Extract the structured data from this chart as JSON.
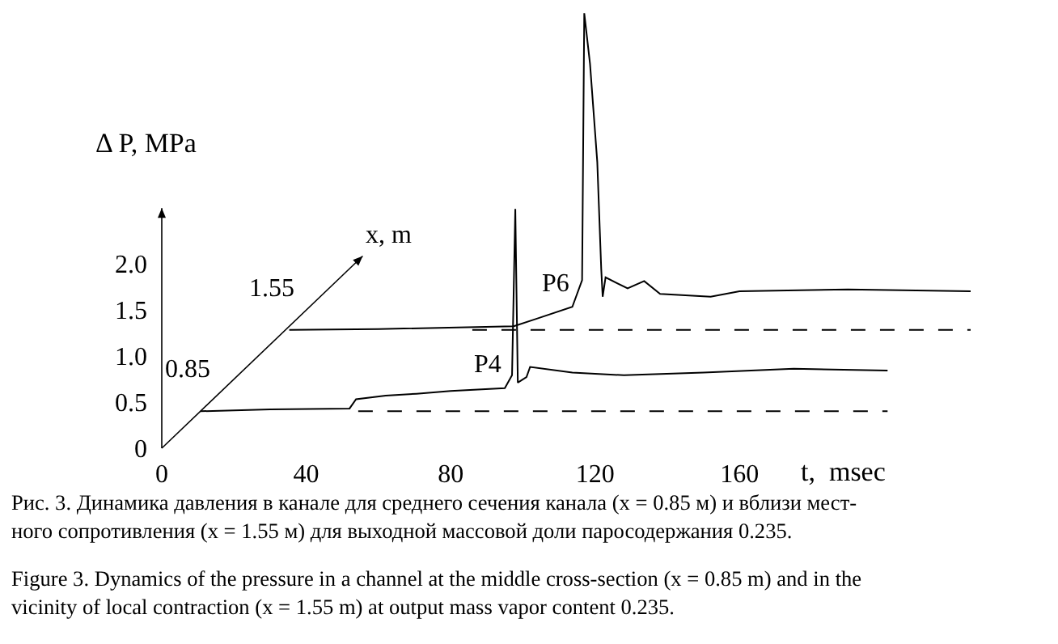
{
  "chart_data": {
    "type": "line",
    "xlabel": "t,  msec",
    "ylabel": "Δ P, MPa",
    "xlim": [
      0,
      224
    ],
    "ylim": [
      0,
      4.8
    ],
    "xticks": [
      0,
      40,
      80,
      120,
      160
    ],
    "yticks": [
      0,
      0.5,
      {
        "value": 1,
        "label": "1.0"
      },
      1.5,
      {
        "value": 2,
        "label": "2.0"
      }
    ],
    "series": [
      {
        "name": "P4",
        "color": "#000000",
        "line_style": "solid",
        "x": [
          10.7,
          30,
          52,
          53.8,
          62,
          70.5,
          80,
          95,
          97,
          97.9,
          98.6,
          101,
          102,
          113.7,
          128,
          150,
          175,
          201
        ],
        "values": [
          0.4,
          0.42,
          0.43,
          0.53,
          0.57,
          0.59,
          0.62,
          0.65,
          0.79,
          2.59,
          0.71,
          0.77,
          0.88,
          0.82,
          0.79,
          0.82,
          0.86,
          0.84
        ]
      },
      {
        "color": "#000000",
        "line_style": "dashed",
        "x": [
          54.4,
          201
        ],
        "values": [
          0.4,
          0.4
        ]
      },
      {
        "name": "P6",
        "color": "#000000",
        "line_style": "solid",
        "x": [
          35.3,
          60,
          97.5,
          103.7,
          113.7,
          116.4,
          117,
          118.6,
          120.6,
          121.7,
          122.1,
          122.9,
          129,
          133.6,
          138,
          152,
          160,
          190,
          224
        ],
        "values": [
          1.28,
          1.29,
          1.32,
          1.4,
          1.53,
          1.82,
          4.71,
          4.16,
          3.1,
          1.94,
          1.64,
          1.85,
          1.73,
          1.81,
          1.67,
          1.64,
          1.7,
          1.72,
          1.7
        ]
      },
      {
        "color": "#000000",
        "line_style": "dashed",
        "x": [
          86,
          224
        ],
        "values": [
          1.28,
          1.28
        ]
      }
    ],
    "annotations": [
      "x, m",
      "0.85",
      "1.55",
      "Рис. 3. Динамика давления в канале для среднего сечения канала (x = 0.85 м) и вблизи мест-\nного сопротивления (x = 1.55 м) для выходной массовой доли паросодержания 0.235.",
      "Figure 3. Dynamics of the pressure in a channel at the middle cross-section (x = 0.85 m) and in the\nvicinity of local contraction (x = 1.55 m) at output mass vapor content 0.235."
    ]
  }
}
